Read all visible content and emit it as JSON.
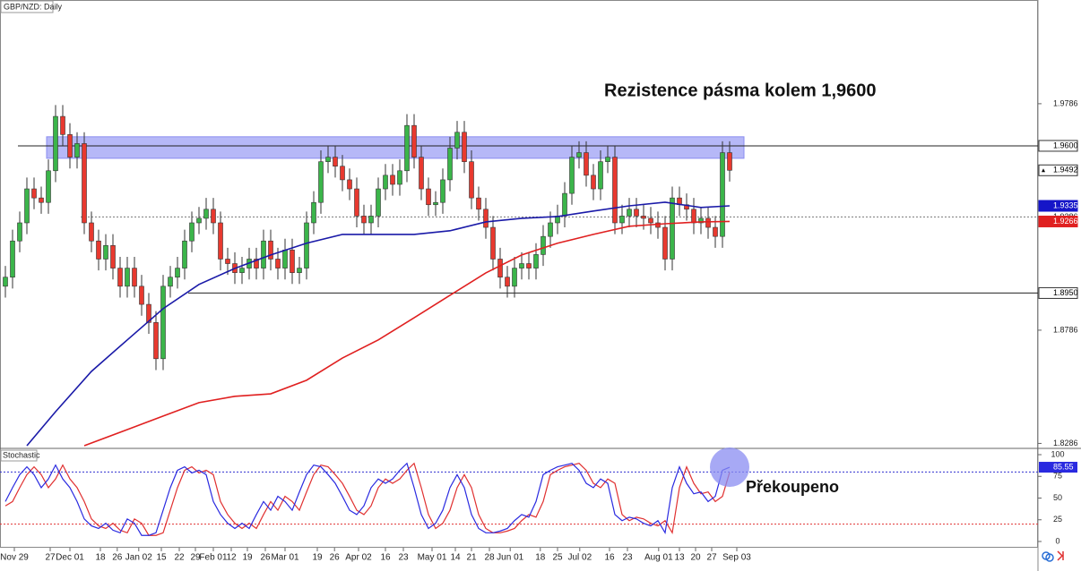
{
  "chart_data": [
    {
      "type": "candlestick",
      "title": "GBP/NZD: Daily",
      "annotation": "Rezistence pásma kolem 1,9600",
      "ylim": [
        1.8268,
        2.0244
      ],
      "yticks": [
        1.9786,
        1.9286,
        1.8786,
        1.8286
      ],
      "xlim": [
        -0.75,
        144
      ],
      "xticks": [
        {
          "value": 1.25,
          "label": "Nov 29"
        },
        {
          "value": 6.25,
          "label": "27"
        },
        {
          "value": 9,
          "label": "Dec 01"
        },
        {
          "value": 13.25,
          "label": "18"
        },
        {
          "value": 15.6,
          "label": "26"
        },
        {
          "value": 18.6,
          "label": "Jan 02"
        },
        {
          "value": 21.75,
          "label": "15"
        },
        {
          "value": 24.25,
          "label": "22"
        },
        {
          "value": 26.5,
          "label": "29"
        },
        {
          "value": 29,
          "label": "Feb 01"
        },
        {
          "value": 31.5,
          "label": "12"
        },
        {
          "value": 33.75,
          "label": "19"
        },
        {
          "value": 36.25,
          "label": "26"
        },
        {
          "value": 39,
          "label": "Mar 01"
        },
        {
          "value": 43.5,
          "label": "19"
        },
        {
          "value": 45.9,
          "label": "26"
        },
        {
          "value": 49.25,
          "label": "Apr 02"
        },
        {
          "value": 53,
          "label": "16"
        },
        {
          "value": 55.5,
          "label": "23"
        },
        {
          "value": 59.5,
          "label": "May 01"
        },
        {
          "value": 62.75,
          "label": "14"
        },
        {
          "value": 65,
          "label": "21"
        },
        {
          "value": 67.5,
          "label": "28"
        },
        {
          "value": 70.4,
          "label": "Jun 01"
        },
        {
          "value": 74.6,
          "label": "18"
        },
        {
          "value": 77,
          "label": "25"
        },
        {
          "value": 80.1,
          "label": "Jul 02"
        },
        {
          "value": 84.25,
          "label": "16"
        },
        {
          "value": 86.75,
          "label": "23"
        },
        {
          "value": 91.1,
          "label": "Aug 01"
        },
        {
          "value": 94,
          "label": "13"
        },
        {
          "value": 96.25,
          "label": "20"
        },
        {
          "value": 98.5,
          "label": "27"
        },
        {
          "value": 102,
          "label": "Sep 03"
        }
      ],
      "up_color": "#3bb54a",
      "down_color": "#e8392f",
      "candles": {
        "open": [
          1.898,
          1.902,
          1.918,
          1.926,
          1.941,
          1.937,
          1.935,
          1.949,
          1.973,
          1.965,
          1.955,
          1.961,
          1.926,
          1.918,
          1.91,
          1.916,
          1.906,
          1.898,
          1.906,
          1.898,
          1.89,
          1.882,
          1.866,
          1.898,
          1.902,
          1.906,
          1.918,
          1.926,
          1.928,
          1.932,
          1.926,
          1.91,
          1.908,
          1.904,
          1.906,
          1.91,
          1.906,
          1.918,
          1.91,
          1.906,
          1.914,
          1.904,
          1.906,
          1.926,
          1.935,
          1.953,
          1.955,
          1.951,
          1.945,
          1.941,
          1.929,
          1.926,
          1.929,
          1.941,
          1.947,
          1.943,
          1.949,
          1.969,
          1.955,
          1.941,
          1.934,
          1.935,
          1.945,
          1.959,
          1.966,
          1.953,
          1.937,
          1.932,
          1.924,
          1.91,
          1.902,
          1.898,
          1.906,
          1.908,
          1.906,
          1.912,
          1.92,
          1.926,
          1.929,
          1.939,
          1.955,
          1.957,
          1.947,
          1.941,
          1.953,
          1.955,
          1.926,
          1.929,
          1.932,
          1.929,
          1.928,
          1.926,
          1.924,
          1.91,
          1.937,
          1.934,
          1.932,
          1.926,
          1.928,
          1.924,
          1.92,
          1.957
        ],
        "high": [
          1.907,
          1.923,
          1.931,
          1.946,
          1.946,
          1.942,
          1.954,
          1.978,
          1.978,
          1.97,
          1.966,
          1.966,
          1.931,
          1.923,
          1.921,
          1.921,
          1.911,
          1.911,
          1.911,
          1.903,
          1.895,
          1.887,
          1.903,
          1.907,
          1.911,
          1.923,
          1.931,
          1.933,
          1.937,
          1.937,
          1.931,
          1.915,
          1.913,
          1.911,
          1.915,
          1.915,
          1.923,
          1.923,
          1.915,
          1.919,
          1.919,
          1.911,
          1.931,
          1.94,
          1.958,
          1.96,
          1.96,
          1.956,
          1.95,
          1.946,
          1.934,
          1.934,
          1.946,
          1.952,
          1.952,
          1.954,
          1.974,
          1.974,
          1.96,
          1.946,
          1.94,
          1.95,
          1.964,
          1.971,
          1.971,
          1.958,
          1.942,
          1.937,
          1.929,
          1.915,
          1.907,
          1.911,
          1.913,
          1.913,
          1.917,
          1.925,
          1.931,
          1.934,
          1.944,
          1.96,
          1.962,
          1.962,
          1.952,
          1.958,
          1.96,
          1.96,
          1.934,
          1.937,
          1.937,
          1.934,
          1.933,
          1.931,
          1.929,
          1.942,
          1.942,
          1.939,
          1.937,
          1.933,
          1.933,
          1.929,
          1.962,
          1.962
        ],
        "low": [
          1.893,
          1.897,
          1.913,
          1.921,
          1.932,
          1.93,
          1.93,
          1.944,
          1.96,
          1.95,
          1.95,
          1.921,
          1.913,
          1.905,
          1.905,
          1.901,
          1.893,
          1.893,
          1.893,
          1.885,
          1.877,
          1.861,
          1.861,
          1.893,
          1.897,
          1.901,
          1.913,
          1.921,
          1.923,
          1.921,
          1.905,
          1.903,
          1.899,
          1.899,
          1.901,
          1.901,
          1.901,
          1.905,
          1.901,
          1.901,
          1.899,
          1.899,
          1.901,
          1.921,
          1.93,
          1.948,
          1.946,
          1.94,
          1.936,
          1.924,
          1.921,
          1.921,
          1.924,
          1.936,
          1.938,
          1.938,
          1.944,
          1.95,
          1.936,
          1.929,
          1.929,
          1.93,
          1.94,
          1.954,
          1.948,
          1.932,
          1.927,
          1.919,
          1.905,
          1.897,
          1.893,
          1.893,
          1.901,
          1.901,
          1.901,
          1.907,
          1.915,
          1.921,
          1.924,
          1.934,
          1.95,
          1.942,
          1.936,
          1.936,
          1.948,
          1.921,
          1.921,
          1.924,
          1.924,
          1.923,
          1.921,
          1.919,
          1.905,
          1.905,
          1.929,
          1.927,
          1.921,
          1.921,
          1.919,
          1.915,
          1.915,
          1.9442
        ],
        "close": [
          1.902,
          1.918,
          1.926,
          1.941,
          1.937,
          1.935,
          1.949,
          1.973,
          1.965,
          1.955,
          1.961,
          1.926,
          1.918,
          1.91,
          1.916,
          1.906,
          1.898,
          1.906,
          1.898,
          1.89,
          1.882,
          1.866,
          1.898,
          1.902,
          1.906,
          1.918,
          1.926,
          1.928,
          1.932,
          1.926,
          1.91,
          1.908,
          1.904,
          1.906,
          1.91,
          1.906,
          1.918,
          1.91,
          1.906,
          1.914,
          1.904,
          1.906,
          1.926,
          1.935,
          1.953,
          1.955,
          1.951,
          1.945,
          1.941,
          1.929,
          1.926,
          1.929,
          1.941,
          1.947,
          1.943,
          1.949,
          1.969,
          1.955,
          1.941,
          1.934,
          1.935,
          1.945,
          1.959,
          1.966,
          1.953,
          1.937,
          1.932,
          1.924,
          1.91,
          1.902,
          1.898,
          1.906,
          1.908,
          1.906,
          1.912,
          1.92,
          1.926,
          1.929,
          1.939,
          1.955,
          1.957,
          1.947,
          1.941,
          1.953,
          1.955,
          1.926,
          1.929,
          1.932,
          1.929,
          1.928,
          1.926,
          1.924,
          1.91,
          1.937,
          1.934,
          1.932,
          1.926,
          1.928,
          1.924,
          1.92,
          1.957,
          1.9492
        ]
      },
      "overlays": [
        {
          "color": "#1a1aa8",
          "label_color": "#1515c8",
          "x": [
            3,
            7,
            12,
            17,
            22,
            27,
            32,
            37,
            42,
            47,
            52,
            57,
            62,
            67,
            72,
            77,
            82,
            87,
            92,
            97,
            101
          ],
          "values": [
            1.8276,
            1.8426,
            1.8604,
            1.8743,
            1.8881,
            1.8988,
            1.9059,
            1.9118,
            1.917,
            1.9209,
            1.9209,
            1.9209,
            1.9225,
            1.9264,
            1.928,
            1.9288,
            1.9312,
            1.9335,
            1.9351,
            1.9328,
            1.9335
          ]
        },
        {
          "color": "#e02020",
          "label_color": "#e02020",
          "x": [
            11,
            17,
            22,
            27,
            32,
            37,
            42,
            47,
            52,
            57,
            62,
            67,
            72,
            77,
            82,
            87,
            92,
            97,
            101
          ],
          "values": [
            1.8276,
            1.8347,
            1.8407,
            1.8466,
            1.8494,
            1.8505,
            1.8565,
            1.8663,
            1.8743,
            1.8841,
            1.894,
            1.9039,
            1.9118,
            1.917,
            1.9209,
            1.9245,
            1.9256,
            1.9264,
            1.9266
          ]
        }
      ],
      "zone": {
        "from": 1.9545,
        "to": 1.964,
        "x": [
          5.75,
          103
        ],
        "color": "#a9acf6"
      },
      "levels": [
        {
          "value": 1.96,
          "label": "1.9600",
          "x": 1.75,
          "style": "solid"
        },
        {
          "value": 1.895,
          "label": "1.8950",
          "x": 25.5,
          "style": "solid"
        },
        {
          "value": 1.9286,
          "x": 10.5,
          "style": "dotted"
        }
      ]
    },
    {
      "type": "line",
      "title": "Stochastic",
      "annotation": "Překoupeno",
      "ylim": [
        -7.2,
        106.2
      ],
      "yticks": [
        100,
        75,
        50,
        25,
        0
      ],
      "xlim": [
        -0.75,
        144
      ],
      "levels": [
        {
          "value": 80,
          "color": "#3030d0"
        },
        {
          "value": 20,
          "color": "#e03030"
        }
      ],
      "highlight_color": "#8a8cf2",
      "series": [
        {
          "color": "#2a2ae0",
          "values": [
            46,
            62,
            77,
            86,
            77,
            62,
            72,
            88,
            72,
            62,
            46,
            26,
            18,
            15,
            21,
            13,
            10,
            26,
            21,
            7,
            7,
            10,
            36,
            62,
            82,
            86,
            79,
            82,
            77,
            46,
            31,
            21,
            15,
            21,
            15,
            31,
            46,
            36,
            52,
            46,
            36,
            57,
            77,
            88,
            86,
            77,
            67,
            52,
            36,
            31,
            41,
            62,
            72,
            67,
            72,
            82,
            90,
            62,
            31,
            15,
            21,
            36,
            62,
            77,
            62,
            31,
            15,
            10,
            10,
            12,
            15,
            24,
            31,
            28,
            46,
            77,
            82,
            86,
            88,
            90,
            82,
            67,
            62,
            72,
            67,
            31,
            24,
            28,
            26,
            21,
            18,
            24,
            10,
            62,
            86,
            67,
            55,
            57,
            46,
            52,
            82,
            85.55
          ]
        },
        {
          "color": "#e03030",
          "values": [
            41,
            46,
            62,
            77,
            86,
            77,
            62,
            72,
            88,
            72,
            62,
            46,
            26,
            18,
            15,
            21,
            13,
            10,
            26,
            21,
            7,
            7,
            10,
            36,
            62,
            82,
            86,
            79,
            82,
            77,
            46,
            31,
            21,
            15,
            21,
            15,
            31,
            46,
            36,
            52,
            46,
            36,
            57,
            77,
            88,
            86,
            77,
            67,
            52,
            36,
            31,
            41,
            62,
            72,
            67,
            72,
            82,
            90,
            62,
            31,
            15,
            21,
            36,
            62,
            77,
            62,
            31,
            15,
            10,
            10,
            12,
            15,
            24,
            31,
            28,
            46,
            77,
            82,
            86,
            88,
            90,
            82,
            67,
            62,
            72,
            67,
            31,
            24,
            28,
            26,
            21,
            18,
            24,
            10,
            62,
            86,
            67,
            55,
            57,
            46,
            52,
            79.73
          ]
        }
      ]
    }
  ]
}
